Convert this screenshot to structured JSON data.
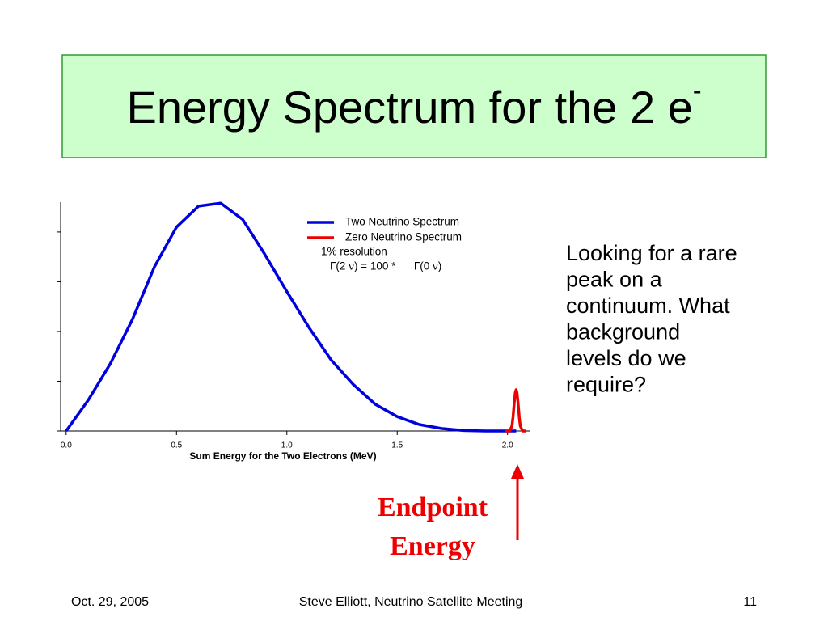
{
  "title": "Energy Spectrum for the 2 e",
  "title_superscript": "-",
  "side_text": [
    "Looking for a rare",
    "peak on a",
    "continuum. What",
    "background",
    "levels do we",
    "require?"
  ],
  "callout": [
    "Endpoint",
    "Energy"
  ],
  "footer": {
    "date": "Oct. 29, 2005",
    "center": "Steve Elliott, Neutrino Satellite Meeting",
    "page": "11"
  },
  "chart_data": {
    "type": "line",
    "xlabel": "Sum Energy for the Two Electrons (MeV)",
    "xlim": [
      -0.025,
      2.1
    ],
    "xticks": [
      {
        "value": 0,
        "label": "0.0"
      },
      {
        "value": 0.5,
        "label": "0.5"
      },
      {
        "value": 1,
        "label": "1.0"
      },
      {
        "value": 1.5,
        "label": "1.5"
      },
      {
        "value": 2,
        "label": "2.0"
      }
    ],
    "ylim": [
      0,
      4.6
    ],
    "yticks": [
      0,
      1,
      2,
      3,
      4
    ],
    "annotations": [
      "1% resolution",
      "Γ(2 ν) = 100 *      Γ(0 ν)"
    ],
    "series": [
      {
        "name": "Two Neutrino Spectrum",
        "color": "#0000dd",
        "x": [
          0,
          0.1,
          0.2,
          0.3,
          0.4,
          0.5,
          0.6,
          0.7,
          0.8,
          0.9,
          1.0,
          1.1,
          1.2,
          1.3,
          1.4,
          1.5,
          1.6,
          1.7,
          1.8,
          1.9,
          2.0,
          2.039
        ],
        "values": [
          0,
          0.62,
          1.35,
          2.24,
          3.3,
          4.1,
          4.52,
          4.58,
          4.25,
          3.55,
          2.8,
          2.08,
          1.43,
          0.94,
          0.54,
          0.29,
          0.13,
          0.05,
          0.01,
          0,
          0,
          0
        ]
      },
      {
        "name": "Zero Neutrino Spectrum",
        "color": "#ee0000",
        "x": [
          1.99,
          2.01,
          2.02,
          2.025,
          2.03,
          2.035,
          2.039,
          2.043,
          2.048,
          2.053,
          2.058,
          2.068,
          2.085
        ],
        "values": [
          0,
          0,
          0.1,
          0.28,
          0.55,
          0.77,
          0.83,
          0.77,
          0.55,
          0.28,
          0.1,
          0,
          0
        ]
      }
    ]
  }
}
